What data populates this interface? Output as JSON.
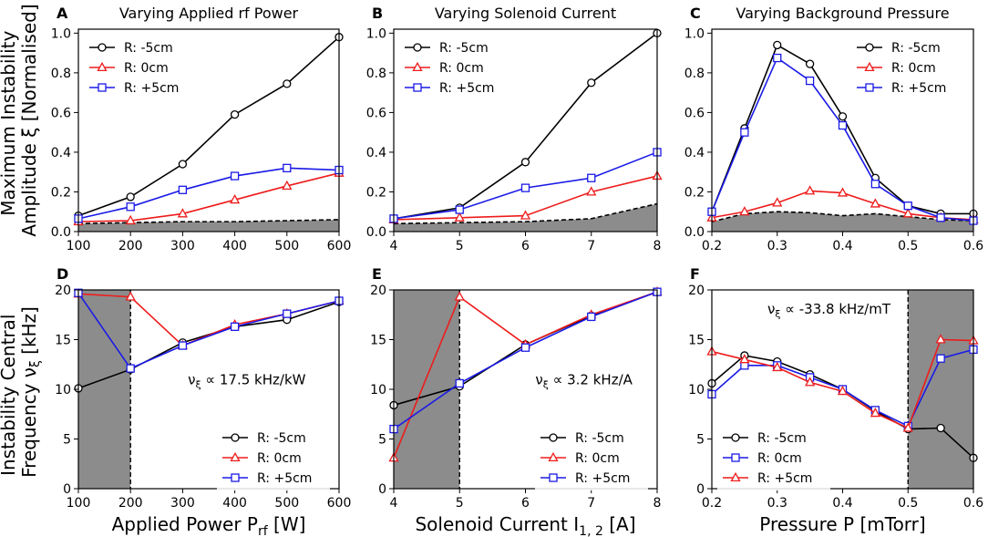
{
  "figure": {
    "ylabel_top": [
      "Maximum Instability",
      "Amplitude ξ [Normalised]"
    ],
    "ylabel_bottom": [
      "Instability Central",
      "Frequency ν",
      "ξ",
      " [kHz]"
    ]
  },
  "colors": {
    "black": "#000000",
    "red": "#ee1c1c",
    "blue": "#1a1ae6",
    "shade": "#8c8c8c"
  },
  "chart_data": [
    {
      "id": "A",
      "letter": "A",
      "type": "line",
      "title": "Varying Applied rf Power",
      "xlabel": "",
      "ylabel": "Maximum Instability Amplitude ξ [Normalised]",
      "xlim": [
        100,
        600
      ],
      "ylim": [
        0,
        1.02
      ],
      "xticks": [
        100,
        200,
        300,
        400,
        500,
        600
      ],
      "xticklabels": [
        "100",
        "200",
        "300",
        "400",
        "500",
        "600"
      ],
      "yticks": [
        0,
        0.2,
        0.4,
        0.6,
        0.8,
        1.0
      ],
      "yticklabels": [
        "0.0",
        "0.2",
        "0.4",
        "0.6",
        "0.8",
        "1.0"
      ],
      "legend_loc": "upper-left",
      "series": [
        {
          "name": "R: -5cm",
          "color": "black",
          "marker": "circle",
          "x": [
            100,
            200,
            300,
            400,
            500,
            600
          ],
          "y": [
            0.08,
            0.175,
            0.34,
            0.59,
            0.745,
            0.98
          ]
        },
        {
          "name": "R: 0cm",
          "color": "red",
          "marker": "triangle",
          "x": [
            100,
            200,
            300,
            400,
            500,
            600
          ],
          "y": [
            0.05,
            0.055,
            0.09,
            0.16,
            0.23,
            0.295
          ]
        },
        {
          "name": "R: +5cm",
          "color": "blue",
          "marker": "square",
          "x": [
            100,
            200,
            300,
            400,
            500,
            600
          ],
          "y": [
            0.065,
            0.125,
            0.21,
            0.28,
            0.32,
            0.31
          ]
        }
      ],
      "noise": {
        "x": [
          100,
          200,
          300,
          400,
          500,
          600
        ],
        "y": [
          0.04,
          0.045,
          0.05,
          0.05,
          0.055,
          0.06
        ]
      }
    },
    {
      "id": "B",
      "letter": "B",
      "type": "line",
      "title": "Varying Solenoid Current",
      "xlabel": "",
      "ylabel": "",
      "xlim": [
        4,
        8
      ],
      "ylim": [
        0,
        1.02
      ],
      "xticks": [
        4,
        5,
        6,
        7,
        8
      ],
      "xticklabels": [
        "4",
        "5",
        "6",
        "7",
        "8"
      ],
      "yticks": [
        0,
        0.2,
        0.4,
        0.6,
        0.8,
        1.0
      ],
      "yticklabels": [
        "0.0",
        "0.2",
        "0.4",
        "0.6",
        "0.8",
        "1.0"
      ],
      "legend_loc": "upper-left",
      "series": [
        {
          "name": "R: -5cm",
          "color": "black",
          "marker": "circle",
          "x": [
            4,
            5,
            6,
            7,
            8
          ],
          "y": [
            0.065,
            0.12,
            0.35,
            0.75,
            1.0
          ]
        },
        {
          "name": "R: 0cm",
          "color": "red",
          "marker": "triangle",
          "x": [
            4,
            5,
            6,
            7,
            8
          ],
          "y": [
            0.06,
            0.07,
            0.08,
            0.2,
            0.28
          ]
        },
        {
          "name": "R: +5cm",
          "color": "blue",
          "marker": "square",
          "x": [
            4,
            5,
            6,
            7,
            8
          ],
          "y": [
            0.065,
            0.11,
            0.22,
            0.27,
            0.4
          ]
        }
      ],
      "noise": {
        "x": [
          4,
          5,
          6,
          7,
          8
        ],
        "y": [
          0.04,
          0.045,
          0.05,
          0.065,
          0.14
        ]
      }
    },
    {
      "id": "C",
      "letter": "C",
      "type": "line",
      "title": "Varying Background Pressure",
      "xlabel": "",
      "ylabel": "",
      "xlim": [
        0.2,
        0.6
      ],
      "ylim": [
        0,
        1.02
      ],
      "xticks": [
        0.2,
        0.3,
        0.4,
        0.5,
        0.6
      ],
      "xticklabels": [
        "0.2",
        "0.3",
        "0.4",
        "0.5",
        "0.6"
      ],
      "yticks": [
        0,
        0.2,
        0.4,
        0.6,
        0.8,
        1.0
      ],
      "yticklabels": [
        "0.0",
        "0.2",
        "0.4",
        "0.6",
        "0.8",
        "1.0"
      ],
      "legend_loc": "upper-right",
      "series": [
        {
          "name": "R: -5cm",
          "color": "black",
          "marker": "circle",
          "x": [
            0.2,
            0.25,
            0.3,
            0.35,
            0.4,
            0.45,
            0.5,
            0.55,
            0.6
          ],
          "y": [
            0.1,
            0.52,
            0.94,
            0.845,
            0.58,
            0.27,
            0.13,
            0.09,
            0.09
          ]
        },
        {
          "name": "R: 0cm",
          "color": "red",
          "marker": "triangle",
          "x": [
            0.2,
            0.25,
            0.3,
            0.35,
            0.4,
            0.45,
            0.5,
            0.55,
            0.6
          ],
          "y": [
            0.07,
            0.1,
            0.145,
            0.205,
            0.195,
            0.14,
            0.09,
            0.07,
            0.06
          ]
        },
        {
          "name": "R: +5cm",
          "color": "blue",
          "marker": "square",
          "x": [
            0.2,
            0.25,
            0.3,
            0.35,
            0.4,
            0.45,
            0.5,
            0.55,
            0.6
          ],
          "y": [
            0.1,
            0.5,
            0.875,
            0.76,
            0.535,
            0.24,
            0.13,
            0.07,
            0.055
          ]
        }
      ],
      "noise": {
        "x": [
          0.2,
          0.25,
          0.3,
          0.35,
          0.4,
          0.45,
          0.5,
          0.55,
          0.6
        ],
        "y": [
          0.05,
          0.09,
          0.1,
          0.095,
          0.08,
          0.09,
          0.075,
          0.06,
          0.055
        ]
      }
    },
    {
      "id": "D",
      "letter": "D",
      "type": "line",
      "title": "",
      "xlabel": "Applied Power P",
      "xlabel_sub": "rf",
      "xlabel_unit": " [W]",
      "ylabel": "Instability Central Frequency νξ [kHz]",
      "xlim": [
        100,
        600
      ],
      "ylim": [
        0,
        20
      ],
      "xticks": [
        100,
        200,
        300,
        400,
        500,
        600
      ],
      "xticklabels": [
        "100",
        "200",
        "300",
        "400",
        "500",
        "600"
      ],
      "yticks": [
        0,
        5,
        10,
        15,
        20
      ],
      "yticklabels": [
        "0",
        "5",
        "10",
        "15",
        "20"
      ],
      "legend_loc": "lower-right",
      "shaded_x": [
        100,
        200
      ],
      "vline": 200,
      "annotation": {
        "prefix": "ν",
        "sub": "ξ",
        "text": " ∝ 17.5 kHz/kW",
        "x": 310,
        "y": 10.5
      },
      "series": [
        {
          "name": "R: -5cm",
          "color": "black",
          "marker": "circle",
          "x": [
            100,
            200,
            300,
            400,
            500,
            600
          ],
          "y": [
            10.1,
            12.0,
            14.7,
            16.3,
            17.0,
            18.8
          ]
        },
        {
          "name": "R: 0cm",
          "color": "red",
          "marker": "triangle",
          "x": [
            100,
            200,
            300,
            400,
            500,
            600
          ],
          "y": [
            19.6,
            19.3,
            14.4,
            16.5,
            17.6,
            18.9
          ]
        },
        {
          "name": "R: +5cm",
          "color": "blue",
          "marker": "square",
          "x": [
            100,
            200,
            300,
            400,
            500,
            600
          ],
          "y": [
            19.7,
            12.1,
            14.4,
            16.3,
            17.6,
            18.9
          ]
        }
      ]
    },
    {
      "id": "E",
      "letter": "E",
      "type": "line",
      "title": "",
      "xlabel": "Solenoid Current I",
      "xlabel_sub": "1, 2",
      "xlabel_unit": " [A]",
      "ylabel": "",
      "xlim": [
        4,
        8
      ],
      "ylim": [
        0,
        20
      ],
      "xticks": [
        4,
        5,
        6,
        7,
        8
      ],
      "xticklabels": [
        "4",
        "5",
        "6",
        "7",
        "8"
      ],
      "yticks": [
        0,
        5,
        10,
        15,
        20
      ],
      "yticklabels": [
        "0",
        "5",
        "10",
        "15",
        "20"
      ],
      "legend_loc": "lower-right",
      "shaded_x": [
        4,
        5
      ],
      "vline": 5,
      "annotation": {
        "prefix": "ν",
        "sub": "ξ",
        "text": " ∝ 3.2 kHz/A",
        "x": 6.15,
        "y": 10.5
      },
      "series": [
        {
          "name": "R: -5cm",
          "color": "black",
          "marker": "circle",
          "x": [
            4,
            5,
            6,
            7,
            8
          ],
          "y": [
            8.4,
            10.3,
            14.5,
            17.4,
            19.8
          ]
        },
        {
          "name": "R: 0cm",
          "color": "red",
          "marker": "triangle",
          "x": [
            4,
            5,
            6,
            7,
            8
          ],
          "y": [
            3.1,
            19.3,
            14.5,
            17.5,
            19.8
          ]
        },
        {
          "name": "R: +5cm",
          "color": "blue",
          "marker": "square",
          "x": [
            4,
            5,
            6,
            7,
            8
          ],
          "y": [
            6.0,
            10.6,
            14.2,
            17.3,
            19.8
          ]
        }
      ]
    },
    {
      "id": "F",
      "letter": "F",
      "type": "line",
      "title": "",
      "xlabel": "Pressure P",
      "xlabel_sub": "",
      "xlabel_unit": " [mTorr]",
      "ylabel": "",
      "xlim": [
        0.2,
        0.6
      ],
      "ylim": [
        0,
        20
      ],
      "xticks": [
        0.2,
        0.3,
        0.4,
        0.5,
        0.6
      ],
      "xticklabels": [
        "0.2",
        "0.3",
        "0.4",
        "0.5",
        "0.6"
      ],
      "yticks": [
        0,
        5,
        10,
        15,
        20
      ],
      "yticklabels": [
        "0",
        "5",
        "10",
        "15",
        "20"
      ],
      "legend_loc": "lower-left",
      "shaded_x": [
        0.5,
        0.6
      ],
      "vline": 0.5,
      "annotation": {
        "prefix": "ν",
        "sub": "ξ",
        "text": " ∝ -33.8 kHz/mT",
        "x": 0.285,
        "y": 17.6
      },
      "series": [
        {
          "name": "R: -5cm",
          "color": "black",
          "marker": "circle",
          "x": [
            0.2,
            0.25,
            0.3,
            0.35,
            0.4,
            0.45,
            0.5,
            0.55,
            0.6
          ],
          "y": [
            10.6,
            13.4,
            12.8,
            11.5,
            10.0,
            7.8,
            6.0,
            6.1,
            3.1
          ]
        },
        {
          "name": "R: 0cm",
          "color": "blue",
          "marker": "square",
          "x": [
            0.2,
            0.25,
            0.3,
            0.35,
            0.4,
            0.45,
            0.5,
            0.55,
            0.6
          ],
          "y": [
            9.5,
            12.4,
            12.4,
            11.2,
            10.0,
            7.9,
            6.3,
            13.1,
            14.0
          ]
        },
        {
          "name": "R: +5cm",
          "color": "red",
          "marker": "triangle",
          "x": [
            0.2,
            0.25,
            0.3,
            0.35,
            0.4,
            0.45,
            0.5,
            0.55,
            0.6
          ],
          "y": [
            13.8,
            13.0,
            12.2,
            10.7,
            9.8,
            7.6,
            6.1,
            15.0,
            14.9
          ]
        }
      ]
    }
  ]
}
